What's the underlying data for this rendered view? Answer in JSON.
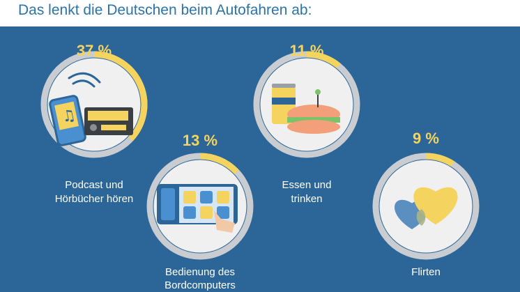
{
  "title": "Das lenkt die Deutschen beim Autofahren ab:",
  "colors": {
    "background": "#2c6699",
    "title": "#2b73a8",
    "ring_track": "#c9cdd1",
    "ring_fill": "#f4d35e",
    "disc": "#f0f0f0",
    "label_text": "#ffffff"
  },
  "chart_data": {
    "type": "donut",
    "title": "Das lenkt die Deutschen beim Autofahren ab:",
    "unit": "%",
    "categories": [
      "Podcast und Hörbücher hören",
      "Bedienung des Bordcomputers",
      "Essen und trinken",
      "Flirten"
    ],
    "values": [
      37,
      13,
      11,
      9
    ],
    "items": [
      {
        "label_lines": [
          "Podcast und",
          "Hörbücher hören"
        ],
        "value": 37,
        "value_text": "37 %",
        "icon": "phone-and-car-radio-icon"
      },
      {
        "label_lines": [
          "Bedienung des",
          "Bordcomputers"
        ],
        "value": 13,
        "value_text": "13 %",
        "icon": "touchscreen-bordcomputer-icon"
      },
      {
        "label_lines": [
          "Essen und",
          "trinken"
        ],
        "value": 11,
        "value_text": "11 %",
        "icon": "drink-can-and-sandwich-icon"
      },
      {
        "label_lines": [
          "Flirten"
        ],
        "value": 9,
        "value_text": "9 %",
        "icon": "two-hearts-icon"
      }
    ]
  }
}
